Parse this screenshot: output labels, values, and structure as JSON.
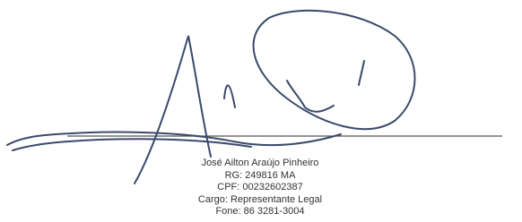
{
  "signature": {
    "lines": [
      "José Ailton Araújo Pinheiro",
      "RG: 249816 MA",
      "CPF: 00232602387",
      "Cargo: Representante Legal",
      "Fone: 86 3281-3004"
    ]
  }
}
